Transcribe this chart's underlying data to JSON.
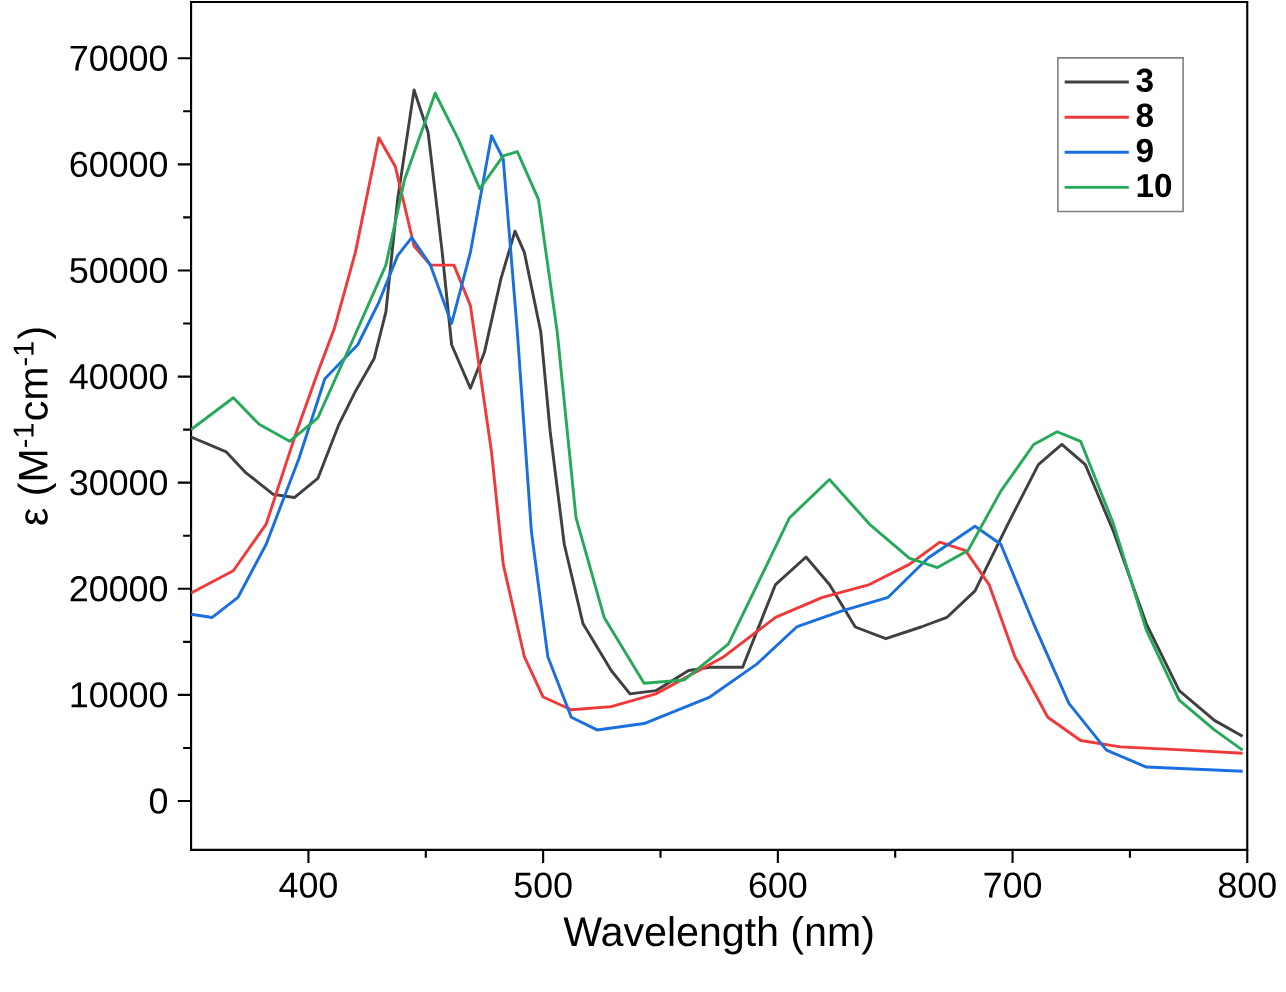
{
  "chart_data": {
    "type": "line",
    "xlabel": "Wavelength (nm)",
    "ylabel": "ε (M$^{-1}$cm$^{-1}$)",
    "xlim": [
      350,
      800
    ],
    "ylim": [
      -4600,
      75300
    ],
    "xticks": [
      400,
      500,
      600,
      700,
      800
    ],
    "yticks": [
      0,
      10000,
      20000,
      30000,
      40000,
      50000,
      60000,
      70000
    ],
    "legend": "top right",
    "line_style": "solid",
    "marker": "none",
    "grid": false,
    "series": [
      {
        "name": "3",
        "color": "#404040",
        "x": [
          350,
          365,
          373,
          385,
          394,
          404,
          413,
          420,
          428,
          433,
          438,
          445,
          451,
          457,
          461,
          469,
          475,
          482,
          488,
          492,
          499,
          503,
          509,
          517,
          529,
          537,
          548,
          562,
          571,
          585,
          599,
          612,
          622,
          633,
          646,
          661,
          672,
          684,
          698,
          711,
          721,
          731,
          743,
          757,
          771,
          786,
          798
        ],
        "values": [
          34300,
          32900,
          31000,
          28900,
          28600,
          30400,
          35500,
          38600,
          41700,
          46100,
          56700,
          67000,
          63000,
          51700,
          43000,
          38900,
          42300,
          49200,
          53700,
          51700,
          44200,
          34800,
          24200,
          16700,
          12300,
          10100,
          10400,
          12300,
          12600,
          12600,
          20400,
          23000,
          20400,
          16400,
          15300,
          16400,
          17300,
          19800,
          26100,
          31700,
          33600,
          31700,
          25400,
          16700,
          10400,
          7600,
          6100
        ]
      },
      {
        "name": "8",
        "color": "#f03a3a",
        "x": [
          350,
          368,
          382,
          394,
          404,
          411,
          420,
          430,
          437,
          445,
          452,
          462,
          469,
          478,
          483,
          492,
          500,
          512,
          529,
          548,
          577,
          599,
          619,
          639,
          656,
          669,
          680,
          690,
          701,
          715,
          729,
          746,
          774,
          798
        ],
        "values": [
          19600,
          21700,
          26100,
          34200,
          40400,
          44500,
          51700,
          62500,
          59800,
          52300,
          50500,
          50500,
          46700,
          32900,
          22300,
          13600,
          9800,
          8600,
          8900,
          10100,
          13600,
          17300,
          19200,
          20400,
          22300,
          24400,
          23600,
          20400,
          13600,
          7900,
          5700,
          5100,
          4800,
          4500
        ]
      },
      {
        "name": "9",
        "color": "#1a6fe0",
        "x": [
          350,
          359,
          370,
          382,
          396,
          407,
          421,
          430,
          438,
          444,
          452,
          461,
          469,
          478,
          483,
          489,
          495,
          502,
          512,
          523,
          543,
          571,
          591,
          608,
          627,
          647,
          664,
          684,
          695,
          709,
          724,
          740,
          757,
          798
        ],
        "values": [
          17600,
          17300,
          19200,
          24200,
          32300,
          39800,
          43000,
          47000,
          51400,
          53100,
          50500,
          45000,
          51700,
          62700,
          60500,
          44200,
          25400,
          13600,
          7900,
          6700,
          7300,
          9800,
          12900,
          16400,
          17900,
          19200,
          22900,
          25900,
          24200,
          16700,
          9200,
          4800,
          3200,
          2800
        ]
      },
      {
        "name": "10",
        "color": "#27a95a",
        "x": [
          350,
          368,
          379,
          392,
          404,
          418,
          433,
          441,
          454,
          464,
          473,
          483,
          489,
          498,
          506,
          514,
          526,
          543,
          560,
          579,
          605,
          622,
          639,
          656,
          668,
          681,
          695,
          709,
          719,
          729,
          743,
          757,
          771,
          786,
          798
        ],
        "values": [
          35000,
          38000,
          35500,
          33900,
          36100,
          43000,
          50500,
          58600,
          66700,
          62300,
          57700,
          60800,
          61200,
          56700,
          44200,
          26700,
          17300,
          11100,
          11400,
          14800,
          26700,
          30300,
          26100,
          22900,
          22000,
          23600,
          29200,
          33600,
          34800,
          33900,
          26100,
          16100,
          9500,
          6700,
          4800
        ]
      }
    ]
  }
}
